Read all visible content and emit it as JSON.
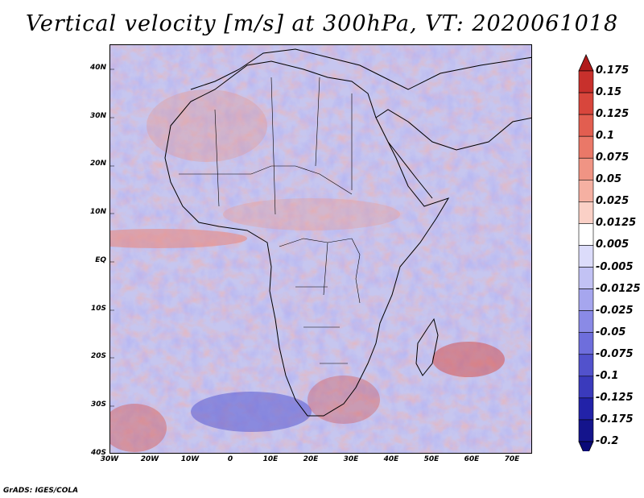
{
  "title": "Vertical velocity [m/s] at 300hPa, VT: 2020061018",
  "credit": "GrADS: IGES/COLA",
  "map": {
    "lon_range": [
      -30,
      75
    ],
    "lat_range": [
      -40,
      45
    ],
    "lat_ticks": [
      {
        "value": 40,
        "label": "40N"
      },
      {
        "value": 30,
        "label": "30N"
      },
      {
        "value": 20,
        "label": "20N"
      },
      {
        "value": 10,
        "label": "10N"
      },
      {
        "value": 0,
        "label": "EQ"
      },
      {
        "value": -10,
        "label": "10S"
      },
      {
        "value": -20,
        "label": "20S"
      },
      {
        "value": -30,
        "label": "30S"
      },
      {
        "value": -40,
        "label": "40S"
      }
    ],
    "lon_ticks": [
      {
        "value": -30,
        "label": "30W"
      },
      {
        "value": -20,
        "label": "20W"
      },
      {
        "value": -10,
        "label": "10W"
      },
      {
        "value": 0,
        "label": "0"
      },
      {
        "value": 10,
        "label": "10E"
      },
      {
        "value": 20,
        "label": "20E"
      },
      {
        "value": 30,
        "label": "30E"
      },
      {
        "value": 40,
        "label": "40E"
      },
      {
        "value": 50,
        "label": "50E"
      },
      {
        "value": 60,
        "label": "60E"
      },
      {
        "value": 70,
        "label": "70E"
      }
    ]
  },
  "colorbar": {
    "labels": [
      "0.175",
      "0.15",
      "0.125",
      "0.1",
      "0.075",
      "0.05",
      "0.025",
      "0.0125",
      "0.005",
      "-0.005",
      "-0.0125",
      "-0.025",
      "-0.05",
      "-0.075",
      "-0.1",
      "-0.125",
      "-0.175",
      "-0.2"
    ],
    "colors": [
      "#b01a1a",
      "#c8302c",
      "#d8463c",
      "#e25e50",
      "#ea7868",
      "#f09484",
      "#f5b0a2",
      "#fad0c6",
      "#ffffff",
      "#dcdcfa",
      "#c2c2f4",
      "#a6a6ee",
      "#8a8ae6",
      "#6e6edc",
      "#5252cc",
      "#3a3abc",
      "#2222a8",
      "#14148c",
      "#0a0a78"
    ]
  }
}
